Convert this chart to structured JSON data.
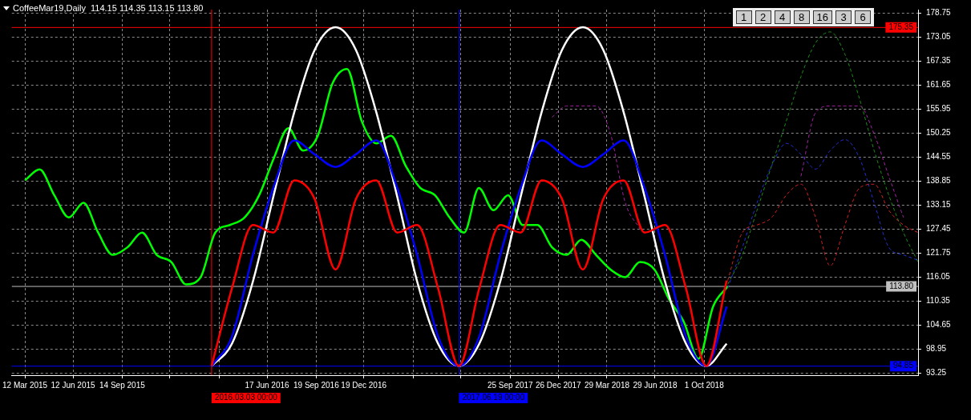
{
  "chart_data": {
    "type": "line",
    "title": "CoffeeMar19,Daily  114.15 114.35 113.15 113.80",
    "annotations": [
      "1",
      "2",
      "4",
      "8",
      "16",
      "3",
      "6"
    ],
    "x": [
      "2016-03-03",
      "2016-04-11",
      "2016-05-21",
      "2016-06-29",
      "2016-08-08",
      "2016-09-16",
      "2016-10-26",
      "2016-12-04",
      "2017-01-12",
      "2017-02-21",
      "2017-03-31",
      "2017-05-10",
      "2017-06-19",
      "2017-07-28",
      "2017-09-06",
      "2017-10-15",
      "2017-11-24",
      "2018-01-02",
      "2018-02-11",
      "2018-03-22",
      "2018-04-30",
      "2018-06-09",
      "2018-07-18",
      "2018-08-27",
      "2018-10-05",
      "2018-11-13"
    ],
    "series": [
      {
        "color": "#00ff00",
        "x": [
          "2015-03-12",
          "2015-04-09",
          "2015-05-07",
          "2015-06-04",
          "2015-07-02",
          "2015-07-30",
          "2015-08-27",
          "2015-09-24",
          "2015-10-22",
          "2015-11-19",
          "2015-12-17",
          "2016-01-14",
          "2016-02-11",
          "2016-03-10",
          "2016-04-07",
          "2016-05-05",
          "2016-06-02",
          "2016-06-30",
          "2016-07-28",
          "2016-08-25",
          "2016-09-22",
          "2016-10-20",
          "2016-11-17",
          "2016-12-15",
          "2017-01-12",
          "2017-02-09",
          "2017-03-09",
          "2017-04-06",
          "2017-05-04",
          "2017-06-01",
          "2017-06-29",
          "2017-07-27",
          "2017-08-24",
          "2017-09-21",
          "2017-10-19",
          "2017-11-16",
          "2017-12-14",
          "2018-01-11",
          "2018-02-08",
          "2018-03-08",
          "2018-04-05",
          "2018-05-03",
          "2018-05-31",
          "2018-06-28",
          "2018-07-26",
          "2018-08-23",
          "2018-09-20",
          "2018-10-18",
          "2018-11-15"
        ],
        "values": [
          139.0,
          141.6,
          135.5,
          130.2,
          133.7,
          126.6,
          121.3,
          123.1,
          126.6,
          121.3,
          119.6,
          114.3,
          116.0,
          126.6,
          128.4,
          130.2,
          135.5,
          144.3,
          151.4,
          146.1,
          149.6,
          162.0,
          165.5,
          153.1,
          147.8,
          149.6,
          142.5,
          137.2,
          135.5,
          130.2,
          126.6,
          137.2,
          131.9,
          135.5,
          128.4,
          128.4,
          123.1,
          121.3,
          124.9,
          121.3,
          117.8,
          116.0,
          119.6,
          117.8,
          110.7,
          105.4,
          96.6,
          109.0,
          113.8
        ]
      },
      {
        "color": "#1a8a1a",
        "line_style": "dashed",
        "x": [
          "2018-11-15",
          "2018-12-13",
          "2019-01-10",
          "2019-02-07",
          "2019-03-07",
          "2019-04-04",
          "2019-05-02",
          "2019-05-30",
          "2019-06-27",
          "2019-07-25",
          "2019-08-22",
          "2019-09-19",
          "2019-10-17",
          "2019-11-14"
        ],
        "values": [
          114.3,
          121.3,
          131.9,
          142.5,
          153.1,
          163.7,
          171.7,
          174.3,
          169.0,
          158.4,
          146.1,
          135.5,
          126.6,
          119.6
        ]
      },
      {
        "color": "#a020a0",
        "line_style": "dashed",
        "x": [
          "2017-12-14",
          "2018-01-11",
          "2018-02-08",
          "2018-03-08",
          "2018-04-05",
          "2018-05-03",
          "2018-05-31",
          "2018-06-28",
          "2018-07-26",
          "2018-08-23",
          "2018-09-20",
          "2018-10-18",
          "2018-11-15",
          "2018-12-13",
          "2019-01-10",
          "2019-02-07",
          "2019-03-07",
          "2019-04-04",
          "2019-05-02",
          "2019-05-30",
          "2019-06-27",
          "2019-07-25",
          "2019-08-22",
          "2019-09-19",
          "2019-10-17"
        ],
        "values": [
          154.0,
          156.7,
          156.7,
          156.7,
          150.0,
          133.7,
          127.5,
          null,
          null,
          null,
          null,
          null,
          null,
          null,
          null,
          null,
          null,
          140.0,
          155.1,
          156.7,
          156.7,
          156.7,
          150.0,
          140.0,
          130.2
        ]
      },
      {
        "color": "#2030d0",
        "line_style": "dashed",
        "x": [
          "2018-11-15",
          "2018-12-13",
          "2019-01-10",
          "2019-02-07",
          "2019-03-07",
          "2019-04-04",
          "2019-05-02",
          "2019-05-30",
          "2019-06-27",
          "2019-07-25",
          "2019-08-22",
          "2019-09-19",
          "2019-10-17",
          "2019-11-14"
        ],
        "values": [
          113.4,
          123.1,
          133.7,
          142.5,
          147.8,
          145.2,
          141.7,
          146.1,
          148.7,
          144.3,
          133.7,
          123.1,
          121.3,
          120.0
        ]
      },
      {
        "color": "#d02020",
        "line_style": "dashed",
        "x": [
          "2018-11-15",
          "2018-12-13",
          "2019-01-10",
          "2019-02-07",
          "2019-03-07",
          "2019-04-04",
          "2019-05-02",
          "2019-05-30",
          "2019-06-27",
          "2019-07-25",
          "2019-08-22",
          "2019-09-19",
          "2019-10-17",
          "2019-11-14"
        ],
        "values": [
          115.2,
          126.6,
          128.4,
          130.2,
          135.5,
          138.1,
          130.2,
          118.7,
          128.4,
          137.2,
          138.1,
          131.9,
          128.4,
          126.6
        ]
      },
      {
        "color": "#ffffff",
        "values": [
          94.9,
          100.2,
          115.0,
          135.1,
          155.2,
          170.0,
          175.4,
          170.0,
          155.2,
          135.1,
          115.0,
          100.2,
          94.9,
          100.2,
          115.0,
          135.1,
          155.2,
          170.0,
          175.4,
          170.0,
          155.2,
          135.1,
          115.0,
          100.2,
          94.9,
          100.2
        ]
      },
      {
        "color": "#0000ff",
        "values": [
          94.9,
          101.9,
          121.3,
          137.2,
          148.5,
          145.2,
          142.2,
          145.2,
          148.5,
          137.2,
          121.3,
          101.9,
          94.9,
          101.9,
          121.3,
          137.2,
          148.5,
          145.2,
          142.2,
          145.2,
          148.5,
          137.2,
          121.3,
          101.9,
          94.9,
          109.0
        ]
      },
      {
        "color": "#ff0000",
        "values": [
          94.9,
          113.4,
          128.4,
          126.6,
          139.0,
          134.6,
          117.8,
          134.6,
          139.0,
          126.6,
          128.4,
          113.4,
          94.9,
          113.4,
          128.4,
          126.6,
          139.0,
          134.6,
          117.8,
          134.6,
          139.0,
          126.6,
          128.4,
          113.4,
          94.9,
          115.2
        ]
      }
    ],
    "xlim": [
      "2015-02-15",
      "2019-11-14"
    ],
    "xticks": [
      {
        "value": "2015-03-12",
        "label": "12 Mar 2015"
      },
      {
        "value": "2015-06-12",
        "label": "12 Jun 2015"
      },
      {
        "value": "2015-09-14",
        "label": "14 Sep 2015"
      },
      {
        "value": "2015-12-14",
        "label": null
      },
      {
        "value": "2016-03-17",
        "label": null
      },
      {
        "value": "2016-06-17",
        "label": "17 Jun 2016"
      },
      {
        "value": "2016-09-19",
        "label": "19 Sep 2016"
      },
      {
        "value": "2016-12-19",
        "label": "19 Dec 2016"
      },
      {
        "value": "2017-03-23",
        "label": null
      },
      {
        "value": "2017-06-22",
        "label": null
      },
      {
        "value": "2017-09-25",
        "label": "25 Sep 2017"
      },
      {
        "value": "2017-12-26",
        "label": "26 Dec 2017"
      },
      {
        "value": "2018-03-29",
        "label": "29 Mar 2018"
      },
      {
        "value": "2018-06-29",
        "label": "29 Jun 2018"
      },
      {
        "value": "2018-10-01",
        "label": "1 Oct 2018"
      }
    ],
    "ylim": [
      92.7,
      179.6
    ],
    "yticks": [
      93.25,
      98.95,
      104.65,
      110.35,
      116.05,
      121.75,
      127.45,
      133.15,
      138.85,
      144.55,
      150.25,
      155.95,
      161.65,
      167.35,
      173.05,
      178.75
    ],
    "ref_lines": [
      {
        "axis": "y",
        "value": 175.35,
        "label": "175.35",
        "color": "#ff0000"
      },
      {
        "axis": "y",
        "value": 94.85,
        "label": "94.85",
        "color": "#0000ff"
      },
      {
        "axis": "y",
        "value": 113.8,
        "label": "113.80",
        "color": "#c0c0c0"
      },
      {
        "axis": "x",
        "value": "2016-03-03",
        "label": "2016.03.03 00:00",
        "color": "#ff0000"
      },
      {
        "axis": "x",
        "value": "2017-06-19",
        "label": "2017.06.19 00:00",
        "color": "#0000ff"
      }
    ],
    "grid": true,
    "legend": false,
    "marker": "none",
    "line_style": "solid"
  }
}
